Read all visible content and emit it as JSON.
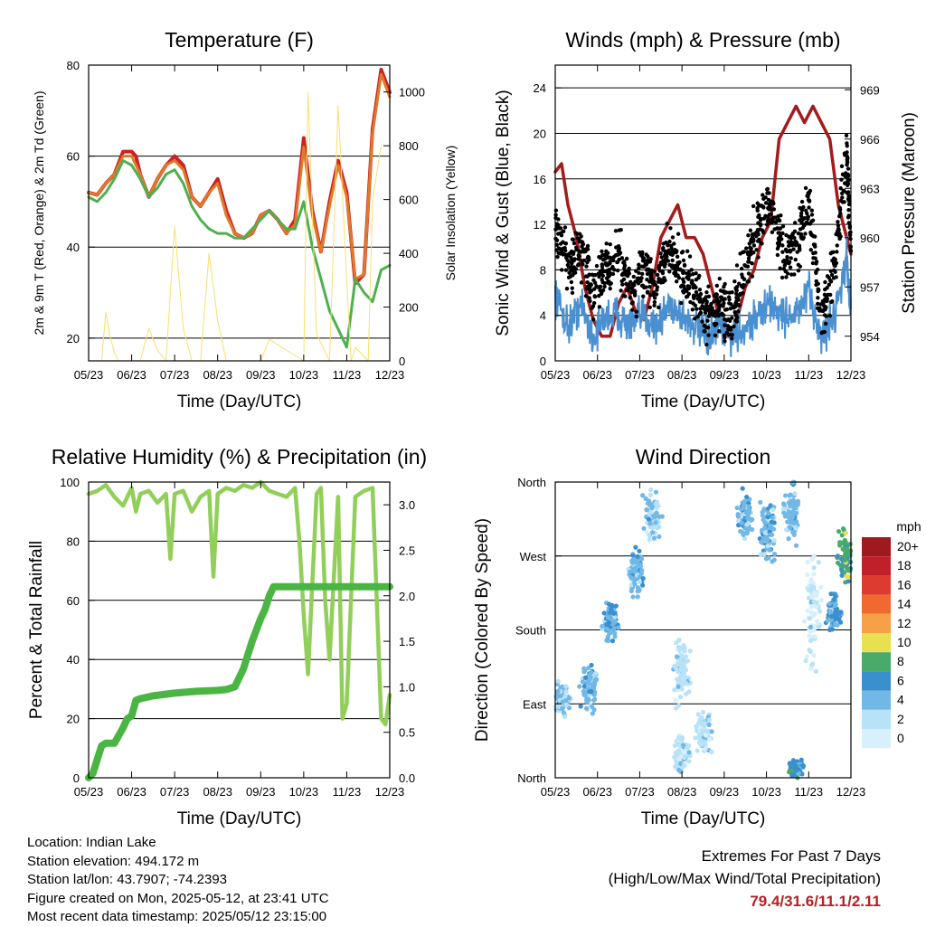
{
  "colors": {
    "red": "#cc2222",
    "orange": "#e07a2a",
    "green": "#4faf4f",
    "yellow": "#f7e070",
    "maroon": "#a31c1c",
    "blue": "#4a90d0",
    "black": "#000000",
    "rh": "#92cf5a",
    "rain": "#4bb543"
  },
  "chart_data": [
    {
      "type": "line",
      "title": "Temperature (F)",
      "xlabel": "Time (Day/UTC)",
      "ylabel": "2m & 9m T (Red, Orange) & 2m Td (Green)",
      "y2label": "Solar Insolation (Yellow)",
      "x_ticks": [
        "05/23",
        "06/23",
        "07/23",
        "08/23",
        "09/23",
        "10/23",
        "11/23",
        "12/23"
      ],
      "ylim": [
        15,
        80
      ],
      "y_ticks": [
        "20",
        "40",
        "60",
        "80"
      ],
      "y2lim": [
        0,
        1100
      ],
      "y2_ticks": [
        "0",
        "200",
        "400",
        "600",
        "800",
        "1000"
      ],
      "grid": true,
      "series": [
        {
          "key": "t2m",
          "color": "#cc2222",
          "x": [
            0,
            0.2,
            0.4,
            0.6,
            0.8,
            1.0,
            1.1,
            1.2,
            1.4,
            1.6,
            1.8,
            2.0,
            2.2,
            2.4,
            2.6,
            2.8,
            3.0,
            3.2,
            3.4,
            3.6,
            3.8,
            4.0,
            4.2,
            4.4,
            4.6,
            4.8,
            5.0,
            5.2,
            5.4,
            5.6,
            5.8,
            6.0,
            6.2,
            6.4,
            6.6,
            6.8,
            7.0
          ],
          "y": [
            52,
            51.5,
            54,
            56,
            61,
            61,
            60,
            56,
            51,
            55,
            58,
            60,
            58,
            51,
            49,
            52,
            55,
            48,
            43,
            42,
            43,
            47,
            48,
            46,
            43,
            46,
            64,
            48,
            39,
            50,
            59,
            52,
            32,
            34,
            66,
            79,
            74
          ]
        },
        {
          "key": "t9m",
          "color": "#e07a2a",
          "x": [
            0,
            0.2,
            0.4,
            0.6,
            0.8,
            1.0,
            1.2,
            1.4,
            1.6,
            1.8,
            2.0,
            2.2,
            2.4,
            2.6,
            2.8,
            3.0,
            3.2,
            3.4,
            3.6,
            3.8,
            4.0,
            4.2,
            4.4,
            4.6,
            4.8,
            5.0,
            5.2,
            5.4,
            5.6,
            5.8,
            6.0,
            6.2,
            6.4,
            6.6,
            6.8,
            7.0
          ],
          "y": [
            52,
            51.5,
            54,
            56,
            60,
            60,
            56,
            51,
            55,
            58,
            59,
            57,
            51,
            49,
            52,
            54,
            47,
            43,
            42,
            43,
            47,
            48,
            46,
            43,
            45,
            62,
            47,
            39,
            49,
            58,
            51,
            33,
            34,
            65,
            78,
            73
          ]
        },
        {
          "key": "td2m",
          "color": "#4faf4f",
          "x": [
            0,
            0.2,
            0.4,
            0.6,
            0.8,
            1.0,
            1.2,
            1.4,
            1.6,
            1.8,
            2.0,
            2.2,
            2.4,
            2.6,
            2.8,
            3.0,
            3.2,
            3.4,
            3.6,
            3.8,
            4.0,
            4.2,
            4.4,
            4.6,
            4.8,
            5.0,
            5.2,
            5.4,
            5.6,
            5.8,
            6.0,
            6.2,
            6.4,
            6.6,
            6.8,
            7.0
          ],
          "y": [
            51,
            50,
            52,
            55,
            59,
            58,
            55,
            51,
            53,
            56,
            57,
            54,
            49,
            46,
            44,
            43,
            43,
            42,
            42,
            44,
            46,
            48,
            46,
            44,
            44,
            50,
            40,
            33,
            26,
            22,
            18,
            33,
            30,
            28,
            35,
            36
          ]
        },
        {
          "key": "solar",
          "color": "#f7e070",
          "axis": "y2",
          "x": [
            0.3,
            0.4,
            0.5,
            0.6,
            0.7,
            0.8,
            1.2,
            1.4,
            1.6,
            1.8,
            2.0,
            2.2,
            2.4,
            2.6,
            2.8,
            3.0,
            3.2,
            4.0,
            4.2,
            5.0,
            5.1,
            5.3,
            5.6,
            5.8,
            6.0,
            6.1,
            6.2,
            6.5,
            6.6,
            6.8
          ],
          "y": [
            0,
            180,
            90,
            30,
            0,
            0,
            0,
            120,
            40,
            0,
            500,
            120,
            0,
            0,
            400,
            150,
            0,
            0,
            80,
            0,
            1000,
            100,
            0,
            950,
            300,
            0,
            50,
            0,
            600,
            800
          ]
        }
      ]
    },
    {
      "type": "line",
      "title": "Winds (mph) & Pressure (mb)",
      "xlabel": "Time (Day/UTC)",
      "ylabel": "Sonic Wind & Gust (Blue, Black)",
      "y2label": "Station Pressure (Maroon)",
      "x_ticks": [
        "05/23",
        "06/23",
        "07/23",
        "08/23",
        "09/23",
        "10/23",
        "11/23",
        "12/23"
      ],
      "ylim": [
        0,
        26
      ],
      "y_ticks": [
        "0",
        "4",
        "8",
        "12",
        "16",
        "20",
        "24"
      ],
      "y2lim": [
        952.5,
        970.5
      ],
      "y2_ticks": [
        "954",
        "957",
        "960",
        "963",
        "966",
        "969"
      ],
      "grid": true,
      "series": [
        {
          "key": "pressure",
          "color": "#a31c1c",
          "axis": "y2",
          "x": [
            0,
            0.15,
            0.3,
            0.5,
            0.7,
            0.9,
            1.1,
            1.3,
            1.5,
            1.7,
            1.9,
            2.1,
            2.3,
            2.5,
            2.7,
            2.9,
            3.1,
            3.3,
            3.5,
            3.7,
            3.9,
            4.1,
            4.3,
            4.5,
            4.7,
            4.9,
            5.1,
            5.3,
            5.5,
            5.7,
            5.9,
            6.1,
            6.3,
            6.5,
            6.7,
            6.9,
            7.0
          ],
          "y": [
            964,
            964.5,
            962,
            960,
            957,
            955,
            954,
            954,
            956,
            957,
            955.5,
            955,
            957,
            960,
            961,
            962,
            960,
            960,
            959,
            957,
            955,
            954,
            955,
            957,
            958,
            960,
            961,
            966,
            967,
            968,
            967,
            968,
            967,
            966,
            962,
            960,
            959
          ]
        },
        {
          "key": "wind",
          "color": "#4a90d0",
          "x": [
            0,
            0.3,
            0.6,
            0.9,
            1.2,
            1.5,
            1.8,
            2.1,
            2.4,
            2.7,
            3.0,
            3.3,
            3.6,
            3.9,
            4.2,
            4.5,
            4.8,
            5.1,
            5.4,
            5.7,
            6.0,
            6.3,
            6.6,
            6.9,
            7.0
          ],
          "y": [
            6,
            3,
            5,
            2,
            4,
            4,
            3,
            4,
            3,
            5,
            4,
            3,
            2,
            3,
            2,
            3,
            4,
            5,
            4,
            4,
            6,
            2,
            4,
            9,
            4
          ]
        },
        {
          "key": "gust",
          "color": "#000000",
          "x": [
            0,
            0.3,
            0.6,
            0.9,
            1.2,
            1.5,
            1.8,
            2.1,
            2.4,
            2.7,
            3.0,
            3.3,
            3.6,
            3.9,
            4.2,
            4.5,
            4.8,
            5.1,
            5.4,
            5.7,
            6.0,
            6.3,
            6.6,
            6.9,
            7.0
          ],
          "y": [
            12,
            8,
            10,
            6,
            8,
            9,
            6,
            8,
            6,
            10,
            8,
            6,
            4,
            5,
            4,
            8,
            12,
            14,
            9,
            10,
            14,
            4,
            8,
            18,
            10
          ]
        }
      ]
    },
    {
      "type": "line",
      "title": "Relative Humidity (%) & Precipitation (in)",
      "xlabel": "Time (Day/UTC)",
      "ylabel": "Percent & Total Rainfall",
      "x_ticks": [
        "05/23",
        "06/23",
        "07/23",
        "08/23",
        "09/23",
        "10/23",
        "11/23",
        "12/23"
      ],
      "ylim": [
        0,
        100
      ],
      "y_ticks": [
        "0",
        "20",
        "40",
        "60",
        "80",
        "100"
      ],
      "y2lim": [
        0,
        3.25
      ],
      "y2_ticks": [
        "0.0",
        "0.5",
        "1.0",
        "1.5",
        "2.0",
        "2.5",
        "3.0"
      ],
      "grid": true,
      "series": [
        {
          "key": "rh",
          "color": "#92cf5a",
          "x": [
            0,
            0.2,
            0.4,
            0.6,
            0.8,
            1.0,
            1.1,
            1.2,
            1.4,
            1.6,
            1.8,
            1.9,
            2.0,
            2.2,
            2.4,
            2.6,
            2.8,
            2.9,
            3.0,
            3.2,
            3.4,
            3.6,
            3.8,
            4.0,
            4.2,
            4.4,
            4.6,
            4.8,
            4.9,
            5.0,
            5.1,
            5.3,
            5.4,
            5.5,
            5.6,
            5.8,
            5.9,
            6.0,
            6.2,
            6.4,
            6.6,
            6.8,
            6.9,
            7.0
          ],
          "y": [
            96,
            97,
            99,
            95,
            92,
            98,
            90,
            96,
            97,
            93,
            96,
            74,
            96,
            97,
            90,
            95,
            97,
            68,
            96,
            98,
            97,
            99,
            98,
            100,
            97,
            96,
            95,
            98,
            80,
            55,
            35,
            96,
            98,
            60,
            40,
            95,
            20,
            25,
            95,
            97,
            98,
            20,
            18,
            28
          ]
        },
        {
          "key": "rain",
          "color": "#4bb543",
          "axis": "y2",
          "x": [
            0,
            0.1,
            0.2,
            0.3,
            0.4,
            0.6,
            0.8,
            0.9,
            1.0,
            1.1,
            1.2,
            1.3,
            1.5,
            2.0,
            2.5,
            3.0,
            3.2,
            3.4,
            3.6,
            3.8,
            4.0,
            4.1,
            4.2,
            4.3,
            4.4,
            5.0,
            6.0,
            7.0
          ],
          "y": [
            0,
            0.05,
            0.2,
            0.35,
            0.38,
            0.38,
            0.55,
            0.65,
            0.68,
            0.85,
            0.87,
            0.88,
            0.9,
            0.93,
            0.95,
            0.96,
            0.97,
            1.0,
            1.2,
            1.5,
            1.75,
            1.85,
            2.0,
            2.1,
            2.1,
            2.1,
            2.1,
            2.1
          ]
        }
      ]
    },
    {
      "type": "scatter",
      "title": "Wind Direction",
      "xlabel": "Time (Day/UTC)",
      "ylabel": "Direction (Colored By Speed)",
      "x_ticks": [
        "05/23",
        "06/23",
        "07/23",
        "08/23",
        "09/23",
        "10/23",
        "11/23",
        "12/23"
      ],
      "y_ticks": [
        "North",
        "East",
        "South",
        "West",
        "North"
      ],
      "ylim": [
        0,
        360
      ],
      "grid": true,
      "legend": {
        "unit": "mph",
        "labels": [
          "20+",
          "18",
          "16",
          "14",
          "12",
          "10",
          "8",
          "6",
          "4",
          "2",
          "0"
        ],
        "colors": [
          "#9e1a1e",
          "#c0202a",
          "#dd3a30",
          "#f06a30",
          "#f8a048",
          "#e8e050",
          "#4aaa6a",
          "#3a8fce",
          "#72b8e6",
          "#b8e2f8",
          "#d8f0fb"
        ],
        "placement": "right"
      },
      "clusters": [
        {
          "x": 0.15,
          "dir": 95,
          "spread": 25,
          "speed": 3
        },
        {
          "x": 0.8,
          "dir": 110,
          "spread": 35,
          "speed": 4
        },
        {
          "x": 1.3,
          "dir": 190,
          "spread": 30,
          "speed": 5
        },
        {
          "x": 1.9,
          "dir": 250,
          "spread": 35,
          "speed": 4
        },
        {
          "x": 2.3,
          "dir": 320,
          "spread": 40,
          "speed": 3
        },
        {
          "x": 3.0,
          "dir": 30,
          "spread": 30,
          "speed": 2
        },
        {
          "x": 3.5,
          "dir": 55,
          "spread": 30,
          "speed": 2
        },
        {
          "x": 3.0,
          "dir": 130,
          "spread": 60,
          "speed": 2
        },
        {
          "x": 4.5,
          "dir": 320,
          "spread": 40,
          "speed": 4
        },
        {
          "x": 5.0,
          "dir": 300,
          "spread": 45,
          "speed": 4
        },
        {
          "x": 5.6,
          "dir": 320,
          "spread": 40,
          "speed": 4
        },
        {
          "x": 5.7,
          "dir": 10,
          "spread": 15,
          "speed": 6
        },
        {
          "x": 6.1,
          "dir": 200,
          "spread": 90,
          "speed": 1
        },
        {
          "x": 6.6,
          "dir": 200,
          "spread": 30,
          "speed": 5
        },
        {
          "x": 6.9,
          "dir": 270,
          "spread": 40,
          "speed": 8
        }
      ]
    }
  ],
  "info": {
    "location": "Location: Indian Lake",
    "elevation": "Station elevation: 494.172 m",
    "latlon": "Station lat/lon: 43.7907; -74.2393",
    "created": "Figure created on Mon, 2025-05-12, at 23:41 UTC",
    "recent": "Most recent data timestamp: 2025/05/12 23:15:00"
  },
  "extremes": {
    "title": "Extremes For Past 7 Days",
    "subtitle": "(High/Low/Max Wind/Total Precipitation)",
    "values": "79.4/31.6/11.1/2.11"
  }
}
